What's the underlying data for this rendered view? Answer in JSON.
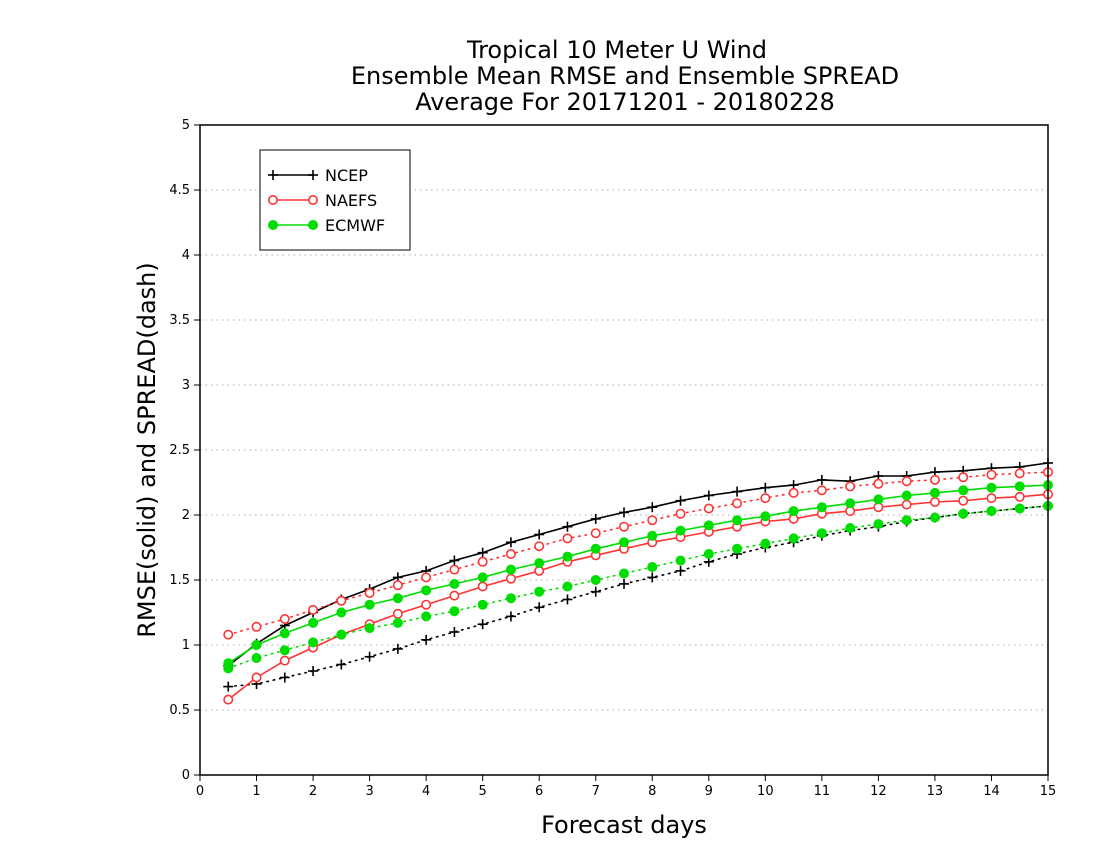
{
  "chart_data": {
    "type": "line",
    "title_lines": [
      "Tropical 10 Meter U Wind",
      "Ensemble Mean RMSE and Ensemble SPREAD",
      "Average For 20171201 - 20180228"
    ],
    "xlabel": "Forecast days",
    "ylabel": "RMSE(solid)  and  SPREAD(dash)",
    "xlim": [
      0,
      15
    ],
    "ylim": [
      0,
      5
    ],
    "x_ticks": [
      "0",
      "1",
      "2",
      "3",
      "4",
      "5",
      "6",
      "7",
      "8",
      "9",
      "10",
      "11",
      "12",
      "13",
      "14",
      "15"
    ],
    "y_ticks": [
      "0",
      "0.5",
      "1",
      "1.5",
      "2",
      "2.5",
      "3",
      "3.5",
      "4",
      "4.5",
      "5"
    ],
    "grid": "horizontal-dotted",
    "legend_position": "top-left",
    "x": [
      0.5,
      1,
      1.5,
      2,
      2.5,
      3,
      3.5,
      4,
      4.5,
      5,
      5.5,
      6,
      6.5,
      7,
      7.5,
      8,
      8.5,
      9,
      9.5,
      10,
      10.5,
      11,
      11.5,
      12,
      12.5,
      13,
      13.5,
      14,
      14.5,
      15
    ],
    "series": [
      {
        "name": "NCEP",
        "color": "#000000",
        "marker": "plus",
        "rmse": [
          0.84,
          1.01,
          1.15,
          1.25,
          1.35,
          1.43,
          1.52,
          1.57,
          1.65,
          1.71,
          1.79,
          1.85,
          1.91,
          1.97,
          2.02,
          2.06,
          2.11,
          2.15,
          2.18,
          2.21,
          2.23,
          2.27,
          2.26,
          2.3,
          2.3,
          2.33,
          2.34,
          2.36,
          2.37,
          2.4
        ],
        "spread": [
          0.68,
          0.7,
          0.75,
          0.8,
          0.85,
          0.91,
          0.97,
          1.04,
          1.1,
          1.16,
          1.22,
          1.29,
          1.35,
          1.41,
          1.47,
          1.52,
          1.57,
          1.64,
          1.7,
          1.75,
          1.79,
          1.84,
          1.88,
          1.91,
          1.95,
          1.98,
          2.01,
          2.03,
          2.05,
          2.07
        ]
      },
      {
        "name": "NAEFS",
        "color": "#ff3333",
        "marker": "open-circle",
        "rmse": [
          0.58,
          0.75,
          0.88,
          0.98,
          1.08,
          1.16,
          1.24,
          1.31,
          1.38,
          1.45,
          1.51,
          1.57,
          1.64,
          1.69,
          1.74,
          1.79,
          1.83,
          1.87,
          1.91,
          1.95,
          1.97,
          2.01,
          2.03,
          2.06,
          2.08,
          2.1,
          2.11,
          2.13,
          2.14,
          2.16
        ],
        "spread": [
          1.08,
          1.14,
          1.2,
          1.27,
          1.34,
          1.4,
          1.46,
          1.52,
          1.58,
          1.64,
          1.7,
          1.76,
          1.82,
          1.86,
          1.91,
          1.96,
          2.01,
          2.05,
          2.09,
          2.13,
          2.17,
          2.19,
          2.22,
          2.24,
          2.26,
          2.27,
          2.29,
          2.31,
          2.32,
          2.33
        ]
      },
      {
        "name": "ECMWF",
        "color": "#00dd00",
        "marker": "filled-circle",
        "rmse": [
          0.86,
          1.0,
          1.09,
          1.17,
          1.25,
          1.31,
          1.36,
          1.42,
          1.47,
          1.52,
          1.58,
          1.63,
          1.68,
          1.74,
          1.79,
          1.84,
          1.88,
          1.92,
          1.96,
          1.99,
          2.03,
          2.06,
          2.09,
          2.12,
          2.15,
          2.17,
          2.19,
          2.21,
          2.22,
          2.23
        ],
        "spread": [
          0.82,
          0.9,
          0.96,
          1.02,
          1.08,
          1.13,
          1.17,
          1.22,
          1.26,
          1.31,
          1.36,
          1.41,
          1.45,
          1.5,
          1.55,
          1.6,
          1.65,
          1.7,
          1.74,
          1.78,
          1.82,
          1.86,
          1.9,
          1.93,
          1.96,
          1.98,
          2.01,
          2.03,
          2.05,
          2.07
        ]
      }
    ]
  }
}
